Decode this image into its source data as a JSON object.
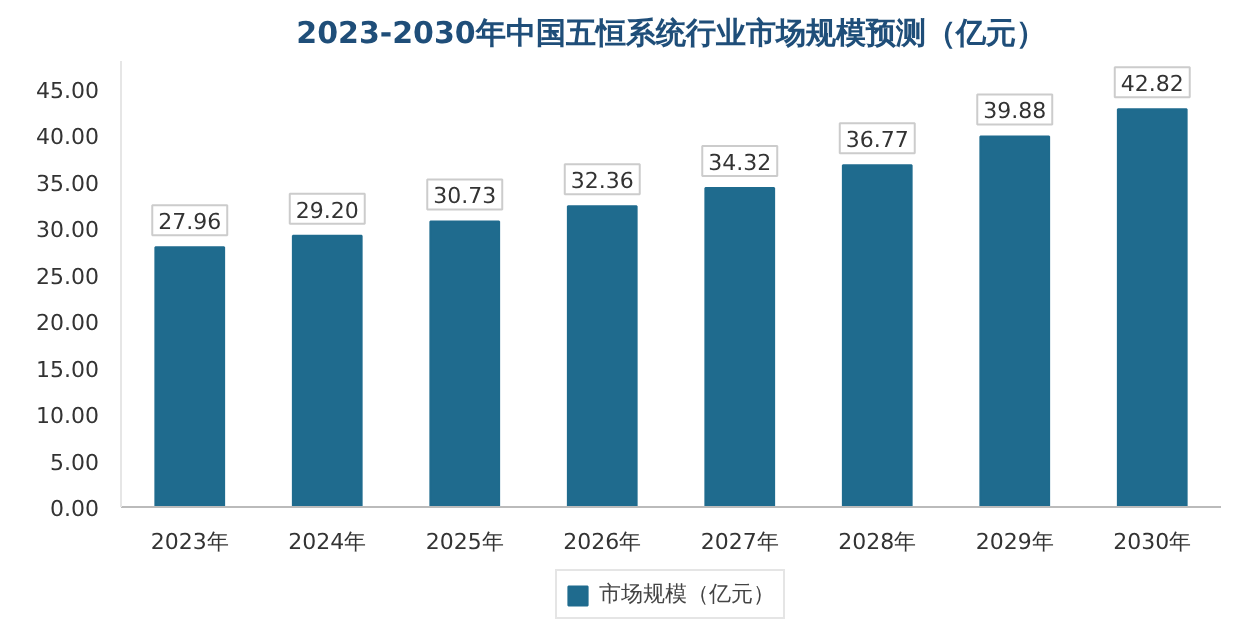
{
  "chart_data": {
    "type": "bar",
    "title": "2023-2030年中国五恒系统行业市场规模预测（亿元）",
    "categories": [
      "2023年",
      "2024年",
      "2025年",
      "2026年",
      "2027年",
      "2028年",
      "2029年",
      "2030年"
    ],
    "series": [
      {
        "name": "市场规模（亿元）",
        "color": "#1f6b8e",
        "values": [
          27.96,
          29.2,
          30.73,
          32.36,
          34.32,
          36.77,
          39.88,
          42.82
        ]
      }
    ],
    "value_labels": [
      "27.96",
      "29.20",
      "30.73",
      "32.36",
      "34.32",
      "36.77",
      "39.88",
      "42.82"
    ],
    "ylim": [
      0,
      48
    ],
    "yticks": [
      {
        "value": 0,
        "label": "0.00"
      },
      {
        "value": 5,
        "label": "5.00"
      },
      {
        "value": 10,
        "label": "10.00"
      },
      {
        "value": 15,
        "label": "15.00"
      },
      {
        "value": 20,
        "label": "20.00"
      },
      {
        "value": 25,
        "label": "25.00"
      },
      {
        "value": 30,
        "label": "30.00"
      },
      {
        "value": 35,
        "label": "35.00"
      },
      {
        "value": 40,
        "label": "40.00"
      },
      {
        "value": 45,
        "label": "45.00"
      }
    ],
    "grid": false,
    "legend": "bottom"
  }
}
